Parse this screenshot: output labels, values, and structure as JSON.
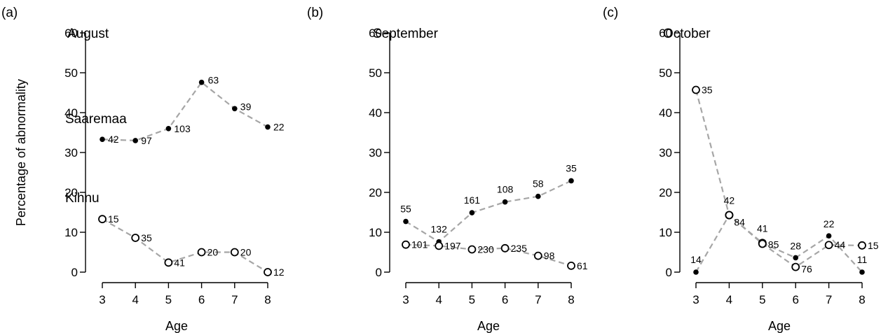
{
  "chart_data": [
    {
      "type": "line",
      "panel": "(a)",
      "title": "August",
      "xlabel": "Age",
      "ylabel": "Percentage of abnormality",
      "x": [
        3,
        4,
        5,
        6,
        7,
        8
      ],
      "xlim": [
        3,
        8
      ],
      "ylim": [
        0,
        60
      ],
      "yticks": [
        0,
        10,
        20,
        30,
        40,
        50,
        60
      ],
      "grid": false,
      "series": [
        {
          "name": "Saaremaa",
          "marker": "filled",
          "values": [
            33.3,
            33.0,
            36.0,
            47.6,
            41.0,
            36.4
          ],
          "labels": [
            "42",
            "97",
            "103",
            "63",
            "39",
            "22"
          ]
        },
        {
          "name": "Kihnu",
          "marker": "open",
          "values": [
            13.3,
            8.6,
            2.4,
            5.0,
            5.0,
            0.0
          ],
          "labels": [
            "15",
            "35",
            "41",
            "20",
            "20",
            "12"
          ]
        }
      ]
    },
    {
      "type": "line",
      "panel": "(b)",
      "title": "September",
      "xlabel": "Age",
      "ylabel": "",
      "x": [
        3,
        4,
        5,
        6,
        7,
        8
      ],
      "xlim": [
        3,
        8
      ],
      "ylim": [
        0,
        60
      ],
      "yticks": [
        0,
        10,
        20,
        30,
        40,
        50,
        60
      ],
      "grid": false,
      "series": [
        {
          "marker": "filled",
          "values": [
            12.7,
            7.6,
            14.9,
            17.6,
            19.0,
            22.9
          ],
          "labels": [
            "55",
            "132",
            "161",
            "108",
            "58",
            "35"
          ]
        },
        {
          "marker": "open",
          "values": [
            6.9,
            6.6,
            5.7,
            6.0,
            4.1,
            1.6
          ],
          "labels": [
            "101",
            "197",
            "230",
            "235",
            "98",
            "61"
          ]
        }
      ]
    },
    {
      "type": "line",
      "panel": "(c)",
      "title": "October",
      "xlabel": "Age",
      "ylabel": "",
      "x": [
        3,
        4,
        5,
        6,
        7,
        8
      ],
      "xlim": [
        3,
        8
      ],
      "ylim": [
        0,
        60
      ],
      "yticks": [
        0,
        10,
        20,
        30,
        40,
        50,
        60
      ],
      "grid": false,
      "series": [
        {
          "marker": "filled",
          "values": [
            0.0,
            14.3,
            7.3,
            3.6,
            9.1,
            0.0
          ],
          "labels": [
            "14",
            "42",
            "41",
            "28",
            "22",
            "11"
          ]
        },
        {
          "marker": "open",
          "values": [
            45.7,
            14.3,
            7.1,
            1.3,
            6.8,
            6.7
          ],
          "labels": [
            "35",
            "84",
            "85",
            "76",
            "44",
            "15"
          ]
        }
      ]
    }
  ],
  "colors": {
    "line": "#a6a6a6",
    "marker": "#000000",
    "axis": "#000000"
  }
}
